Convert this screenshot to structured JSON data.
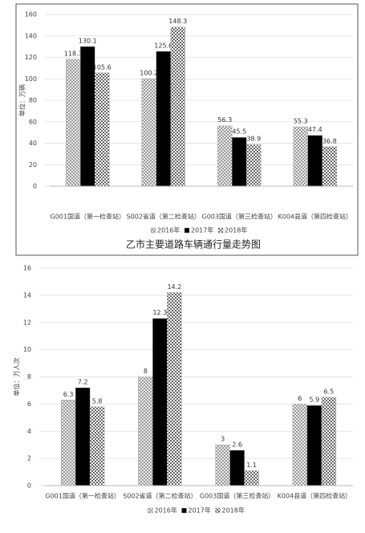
{
  "chart_data": [
    {
      "type": "bar",
      "title": "乙市主要道路车辆通行量走势图",
      "y_label": "单位：万辆",
      "categories": [
        "G001国道（第一检查站）",
        "S002省道（第二检查站）",
        "G003国道（第三检查站）",
        "K004县道（第四检查站）"
      ],
      "series": [
        {
          "name": "2016年",
          "color": "#888888",
          "values": [
            118.3,
            100.2,
            56.3,
            55.3
          ]
        },
        {
          "name": "2017年",
          "color": "#000000",
          "values": [
            130.1,
            125.6,
            45.5,
            47.4
          ]
        },
        {
          "name": "2018年",
          "color": "#666666",
          "values": [
            105.6,
            148.3,
            38.9,
            36.8
          ]
        }
      ],
      "ylim": [
        0,
        160
      ],
      "yticks": [
        0,
        20,
        40,
        60,
        80,
        100,
        120,
        140,
        160
      ],
      "grid": true
    },
    {
      "type": "bar",
      "y_label": "单位：万人次",
      "categories": [
        "G001国道（第一检查站）",
        "S002省道（第二检查站）",
        "G003国道（第三检查站）",
        "K004县道（第四检查站）"
      ],
      "series": [
        {
          "name": "2016年",
          "color": "#888888",
          "values": [
            6.3,
            8,
            3,
            6
          ]
        },
        {
          "name": "2017年",
          "color": "#000000",
          "values": [
            7.2,
            12.3,
            2.6,
            5.9
          ]
        },
        {
          "name": "2018年",
          "color": "#666666",
          "values": [
            5.8,
            14.2,
            1.1,
            6.5
          ]
        }
      ],
      "ylim": [
        0,
        16
      ],
      "yticks": [
        0,
        2,
        4,
        6,
        8,
        10,
        12,
        14,
        16
      ],
      "grid": true
    }
  ]
}
